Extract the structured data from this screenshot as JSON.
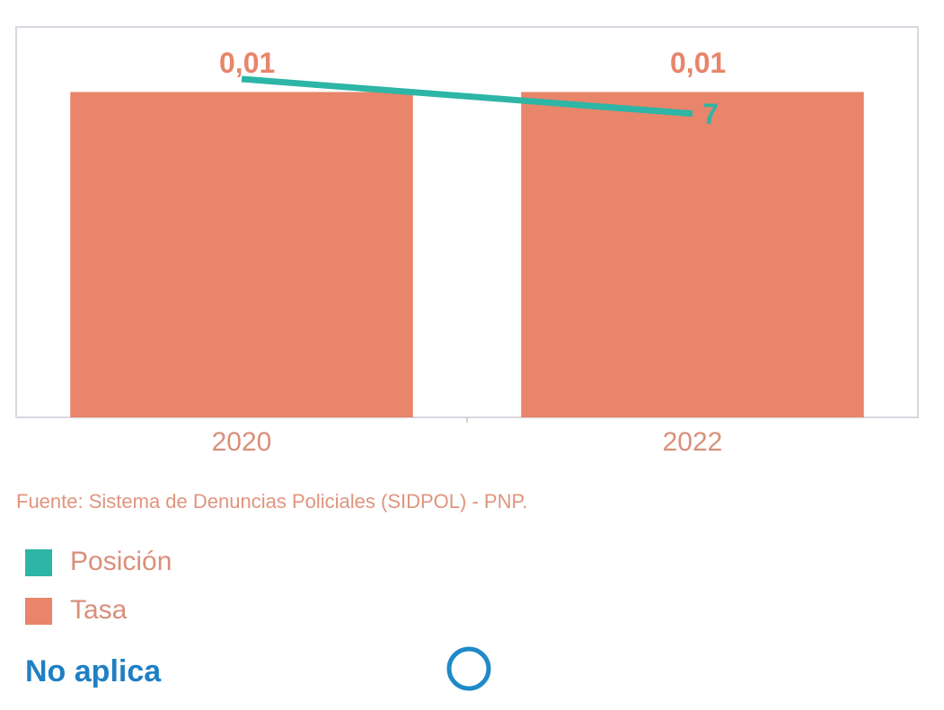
{
  "chart_data": {
    "type": "bar",
    "categories": [
      "2020",
      "2022"
    ],
    "series": [
      {
        "name": "Posición",
        "type": "line",
        "axis": "y2",
        "color": "#2db5a6",
        "values": [
          7.8,
          7
        ],
        "value_labels": [
          null,
          "7"
        ]
      },
      {
        "name": "Tasa",
        "type": "bar",
        "color": "#e8856a",
        "values": [
          0.01,
          0.01
        ],
        "value_labels": [
          "0,01",
          "0,01"
        ]
      }
    ],
    "ylim": [
      0,
      0.012
    ],
    "y2lim": [
      0,
      9
    ],
    "source": "Fuente: Sistema de Denuncias Policiales (SIDPOL) - PNP.",
    "note": "No aplica"
  }
}
